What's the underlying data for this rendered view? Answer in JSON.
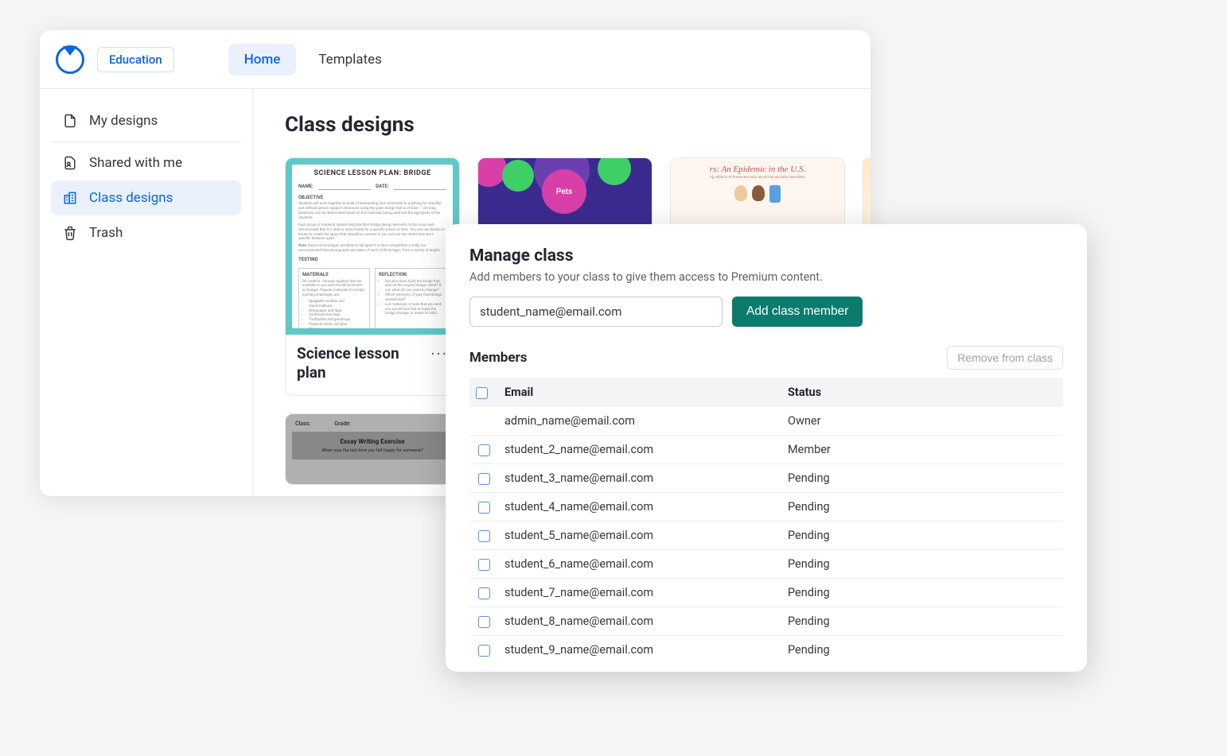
{
  "colors": {
    "primary_blue": "#0a66e0",
    "teal_button": "#0a7b6c",
    "bg": "#f5f5f5",
    "border": "#e6e8ea",
    "text": "#333740",
    "muted": "#5d636e"
  },
  "topbar": {
    "badge": "Education",
    "tabs": [
      {
        "label": "Home",
        "active": true
      },
      {
        "label": "Templates",
        "active": false
      }
    ]
  },
  "sidebar": {
    "items": [
      {
        "id": "my-designs",
        "label": "My designs",
        "icon": "file-icon",
        "active": false
      },
      {
        "id": "shared",
        "label": "Shared with me",
        "icon": "person-file-icon",
        "active": false
      },
      {
        "id": "class-designs",
        "label": "Class designs",
        "icon": "buildings-icon",
        "active": true
      },
      {
        "id": "trash",
        "label": "Trash",
        "icon": "trash-icon",
        "active": false
      }
    ]
  },
  "main": {
    "title": "Class designs",
    "cards": [
      {
        "title": "Science lesson plan",
        "thumb": {
          "heading": "SCIENCE LESSON PLAN: BRIDGE",
          "name_label": "NAME:",
          "date_label": "DATE:",
          "sections": [
            "OBJECTIVE",
            "TESTING",
            "MATERIALS",
            "REFLECTION"
          ]
        }
      },
      {
        "thumb": {
          "label": "Pets"
        }
      },
      {
        "thumb": {
          "heading": "rs: An Epidemic in the U.S."
        }
      },
      {}
    ],
    "card2": {
      "class_label": "Class:",
      "grade_label": "Grade:",
      "title": "Essay Writing Exercise",
      "prompt": "When was the last time you felt happy for someone?"
    }
  },
  "popover": {
    "title": "Manage class",
    "subtitle": "Add members to your class to give them access to Premium content.",
    "email_input_value": "student_name@email.com",
    "add_button": "Add class member",
    "members_label": "Members",
    "remove_button": "Remove from class",
    "table": {
      "columns": [
        "Email",
        "Status"
      ],
      "rows": [
        {
          "email": "admin_name@email.com",
          "status": "Owner",
          "checkbox": false
        },
        {
          "email": "student_2_name@email.com",
          "status": "Member",
          "checkbox": true
        },
        {
          "email": "student_3_name@email.com",
          "status": "Pending",
          "checkbox": true
        },
        {
          "email": "student_4_name@email.com",
          "status": "Pending",
          "checkbox": true
        },
        {
          "email": "student_5_name@email.com",
          "status": "Pending",
          "checkbox": true
        },
        {
          "email": "student_6_name@email.com",
          "status": "Pending",
          "checkbox": true
        },
        {
          "email": "student_7_name@email.com",
          "status": "Pending",
          "checkbox": true
        },
        {
          "email": "student_8_name@email.com",
          "status": "Pending",
          "checkbox": true
        },
        {
          "email": "student_9_name@email.com",
          "status": "Pending",
          "checkbox": true
        }
      ]
    }
  }
}
